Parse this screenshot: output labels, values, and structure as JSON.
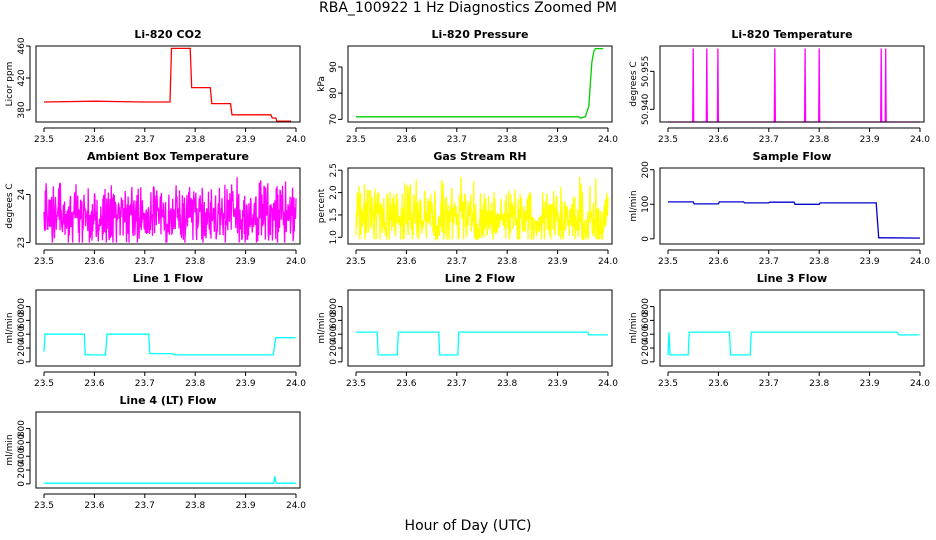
{
  "figure": {
    "title": "RBA_100922  1 Hz Diagnostics Zoomed PM",
    "xlabel": "Hour of Day (UTC)"
  },
  "chart_data": [
    {
      "type": "line",
      "title": "Li-820 CO2",
      "xlabel": "",
      "ylabel": "Licor ppm",
      "xlim": [
        23.5,
        24.0
      ],
      "ylim": [
        365,
        460
      ],
      "yticks": [
        380,
        420,
        460
      ],
      "xticks": [
        23.5,
        23.6,
        23.7,
        23.8,
        23.9,
        24.0
      ],
      "color": "#ff0000",
      "x": [
        23.5,
        23.6,
        23.7,
        23.75,
        23.753,
        23.79,
        23.793,
        23.83,
        23.833,
        23.87,
        23.873,
        23.95,
        23.953,
        23.96,
        23.962,
        23.99
      ],
      "y": [
        390,
        391,
        390,
        390,
        457,
        457,
        408,
        408,
        388,
        388,
        374,
        374,
        370,
        370,
        366,
        366
      ]
    },
    {
      "type": "line",
      "title": "Li-820 Pressure",
      "xlabel": "",
      "ylabel": "kPa",
      "xlim": [
        23.5,
        24.0
      ],
      "ylim": [
        69,
        98
      ],
      "yticks": [
        70,
        80,
        90
      ],
      "xticks": [
        23.5,
        23.6,
        23.7,
        23.8,
        23.9,
        24.0
      ],
      "color": "#00cd00",
      "x": [
        23.5,
        23.6,
        23.7,
        23.8,
        23.9,
        23.942,
        23.945,
        23.955,
        23.962,
        23.968,
        23.972,
        23.975,
        23.99
      ],
      "y": [
        71,
        71,
        71,
        71,
        71,
        71,
        70.5,
        71,
        75,
        92,
        96,
        97,
        97
      ]
    },
    {
      "type": "line",
      "title": "Li-820 Temperature",
      "xlabel": "",
      "ylabel": "degrees C",
      "xlim": [
        23.5,
        24.0
      ],
      "ylim": [
        50.935,
        50.965
      ],
      "yticks": [
        50.94,
        50.955
      ],
      "xticks": [
        23.5,
        23.6,
        23.7,
        23.8,
        23.9,
        24.0
      ],
      "color": "#ff00ff",
      "x": [
        23.5,
        23.549,
        23.55,
        23.551,
        23.576,
        23.577,
        23.578,
        23.598,
        23.599,
        23.6,
        23.711,
        23.712,
        23.713,
        23.771,
        23.772,
        23.773,
        23.799,
        23.8,
        23.801,
        23.922,
        23.923,
        23.924,
        23.931,
        23.932,
        23.933,
        24.0
      ],
      "y": [
        50.935,
        50.935,
        50.964,
        50.935,
        50.935,
        50.964,
        50.935,
        50.935,
        50.964,
        50.935,
        50.935,
        50.964,
        50.935,
        50.935,
        50.964,
        50.935,
        50.935,
        50.964,
        50.935,
        50.935,
        50.964,
        50.935,
        50.935,
        50.964,
        50.935,
        50.935
      ]
    },
    {
      "type": "line",
      "title": "Ambient Box Temperature",
      "xlabel": "",
      "ylabel": "degrees C",
      "xlim": [
        23.5,
        24.0
      ],
      "ylim": [
        22.97,
        24.55
      ],
      "yticks": [
        23.0,
        24.0
      ],
      "xticks": [
        23.5,
        23.6,
        23.7,
        23.8,
        23.9,
        24.0
      ],
      "color": "#ff00ff",
      "noise": {
        "low": 23.0,
        "high": 24.4,
        "center": 23.55,
        "spread": 0.55,
        "n": 600
      }
    },
    {
      "type": "line",
      "title": "Gas Stream RH",
      "xlabel": "",
      "ylabel": "percent",
      "xlim": [
        23.5,
        24.0
      ],
      "ylim": [
        0.85,
        2.55
      ],
      "yticks": [
        1.0,
        1.5,
        2.0,
        2.5
      ],
      "xticks": [
        23.5,
        23.6,
        23.7,
        23.8,
        23.9,
        24.0
      ],
      "color": "#ffff00",
      "noise": {
        "low": 0.95,
        "high": 2.45,
        "center": 1.45,
        "spread": 0.6,
        "n": 600
      }
    },
    {
      "type": "line",
      "title": "Sample Flow",
      "xlabel": "",
      "ylabel": "ml/min",
      "xlim": [
        23.5,
        24.0
      ],
      "ylim": [
        -15,
        205
      ],
      "yticks": [
        0,
        100,
        200
      ],
      "xticks": [
        23.5,
        23.6,
        23.7,
        23.8,
        23.9,
        24.0
      ],
      "color": "#0000cd",
      "x": [
        23.5,
        23.55,
        23.552,
        23.6,
        23.602,
        23.65,
        23.652,
        23.7,
        23.702,
        23.75,
        23.752,
        23.8,
        23.802,
        23.913,
        23.918,
        23.93,
        24.0
      ],
      "y": [
        107,
        107,
        101,
        101,
        107,
        107,
        104,
        104,
        106,
        106,
        100,
        100,
        104,
        104,
        3,
        3,
        2
      ]
    },
    {
      "type": "line",
      "title": "Line 1 Flow",
      "xlabel": "",
      "ylabel": "ml/min",
      "xlim": [
        23.5,
        24.0
      ],
      "ylim": [
        -60,
        1040
      ],
      "yticks": [
        0,
        200,
        400,
        600,
        800
      ],
      "xticks": [
        23.5,
        23.6,
        23.7,
        23.8,
        23.9,
        24.0
      ],
      "color": "#00ffff",
      "x": [
        23.5,
        23.502,
        23.58,
        23.582,
        23.622,
        23.625,
        23.708,
        23.71,
        23.755,
        23.758,
        23.955,
        23.96,
        23.999
      ],
      "y": [
        150,
        400,
        400,
        100,
        100,
        400,
        400,
        120,
        120,
        100,
        100,
        350,
        350
      ]
    },
    {
      "type": "line",
      "title": "Line 2 Flow",
      "xlabel": "",
      "ylabel": "ml/min",
      "xlim": [
        23.5,
        24.0
      ],
      "ylim": [
        -60,
        1040
      ],
      "yticks": [
        0,
        200,
        400,
        600,
        800
      ],
      "xticks": [
        23.5,
        23.6,
        23.7,
        23.8,
        23.9,
        24.0
      ],
      "color": "#00ffff",
      "x": [
        23.5,
        23.542,
        23.544,
        23.582,
        23.584,
        23.664,
        23.666,
        23.702,
        23.704,
        23.96,
        23.962,
        24.0
      ],
      "y": [
        430,
        430,
        100,
        100,
        430,
        430,
        100,
        100,
        430,
        430,
        390,
        390
      ]
    },
    {
      "type": "line",
      "title": "Line 3 Flow",
      "xlabel": "",
      "ylabel": "ml/min",
      "xlim": [
        23.5,
        24.0
      ],
      "ylim": [
        -60,
        1040
      ],
      "yticks": [
        0,
        200,
        400,
        600,
        800
      ],
      "xticks": [
        23.5,
        23.6,
        23.7,
        23.8,
        23.9,
        24.0
      ],
      "color": "#00ffff",
      "x": [
        23.5,
        23.502,
        23.504,
        23.54,
        23.542,
        23.622,
        23.624,
        23.663,
        23.665,
        23.955,
        23.958,
        23.999
      ],
      "y": [
        100,
        430,
        100,
        100,
        430,
        430,
        100,
        100,
        430,
        430,
        390,
        390
      ]
    },
    {
      "type": "line",
      "title": "Line 4 (LT) Flow",
      "xlabel": "",
      "ylabel": "ml/min",
      "xlim": [
        23.5,
        24.0
      ],
      "ylim": [
        -60,
        1040
      ],
      "yticks": [
        0,
        200,
        400,
        600,
        800
      ],
      "xticks": [
        23.5,
        23.6,
        23.7,
        23.8,
        23.9,
        24.0
      ],
      "color": "#00ffff",
      "x": [
        23.5,
        23.6,
        23.7,
        23.8,
        23.9,
        23.956,
        23.958,
        23.96,
        23.962,
        24.0
      ],
      "y": [
        10,
        10,
        10,
        10,
        10,
        10,
        110,
        30,
        10,
        10
      ]
    }
  ]
}
